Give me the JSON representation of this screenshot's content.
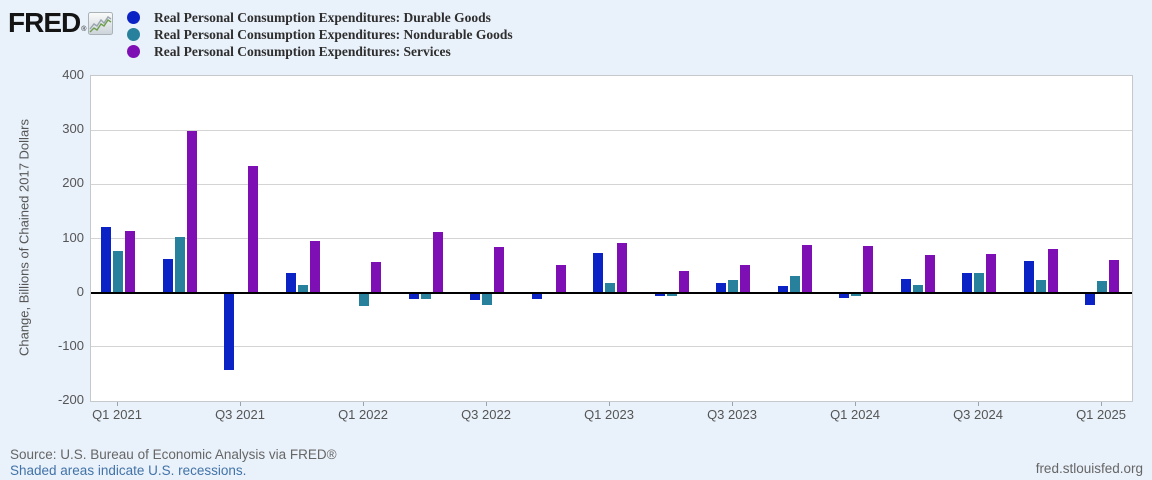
{
  "logo": {
    "text": "FRED",
    "registered": "®"
  },
  "y_axis": {
    "title": "Change, Billions of Chained 2017 Dollars",
    "ticks": [
      400,
      300,
      200,
      100,
      0,
      -100,
      -200
    ]
  },
  "footer": {
    "source": "Source: U.S. Bureau of Economic Analysis via FRED®",
    "recessions_note": "Shaded areas indicate U.S. recessions.",
    "site": "fred.stlouisfed.org"
  },
  "chart_data": {
    "type": "bar",
    "categories": [
      "Q1 2021",
      "Q2 2021",
      "Q3 2021",
      "Q4 2021",
      "Q1 2022",
      "Q2 2022",
      "Q3 2022",
      "Q4 2022",
      "Q1 2023",
      "Q2 2023",
      "Q3 2023",
      "Q4 2023",
      "Q1 2024",
      "Q2 2024",
      "Q3 2024",
      "Q4 2024",
      "Q1 2025"
    ],
    "series": [
      {
        "name": "Real Personal Consumption Expenditures: Durable Goods",
        "color": "#0b23c4",
        "values": [
          122,
          62,
          -143,
          36,
          -2,
          -12,
          -14,
          -11,
          74,
          -6,
          17,
          12,
          -9,
          26,
          37,
          58,
          -22
        ]
      },
      {
        "name": "Real Personal Consumption Expenditures: Nondurable Goods",
        "color": "#27809c",
        "values": [
          77,
          103,
          1,
          14,
          -25,
          -12,
          -23,
          -2,
          17,
          -6,
          23,
          30,
          -7,
          14,
          36,
          23,
          21
        ]
      },
      {
        "name": "Real Personal Consumption Expenditures: Services",
        "color": "#7e0fb4",
        "values": [
          113,
          298,
          233,
          96,
          56,
          112,
          84,
          52,
          91,
          40,
          51,
          88,
          86,
          70,
          72,
          80,
          60
        ]
      }
    ],
    "ylabel": "Change, Billions of Chained 2017 Dollars",
    "ylim": [
      -200,
      400
    ],
    "x_tick_step": 2,
    "grid": true,
    "legend_position": "top-left",
    "zero_line": true
  }
}
